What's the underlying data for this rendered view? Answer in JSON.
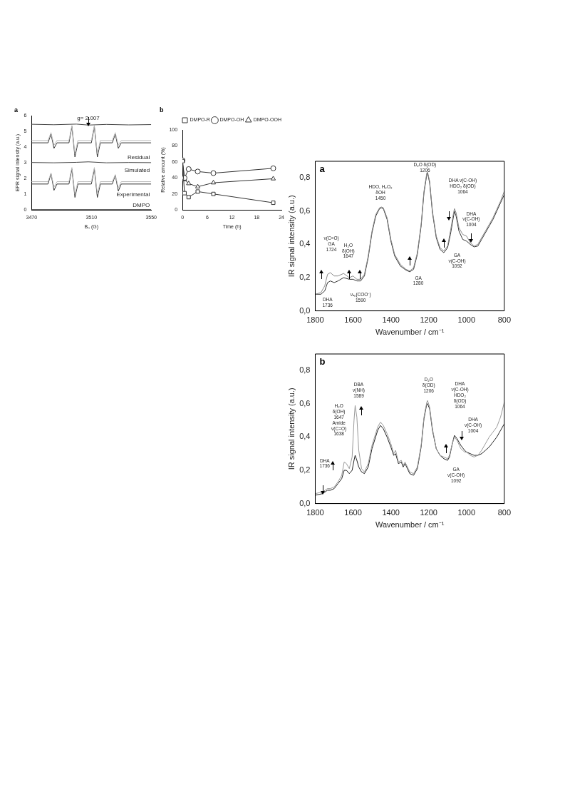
{
  "chart_data": [
    {
      "type": "line",
      "title": "a",
      "xlabel": "B₀ (G)",
      "ylabel": "EPR signal intensity (a.u.)",
      "xlim": [
        3470,
        3550
      ],
      "xticks": [
        3470,
        3510,
        3550
      ],
      "ylim": [
        0,
        6
      ],
      "yticks": [
        0,
        1,
        2,
        3,
        4,
        5,
        6
      ],
      "grid": false,
      "legend": false,
      "marker": "none",
      "x": [
        3470,
        3481,
        3483,
        3485,
        3487,
        3495,
        3497,
        3499,
        3501,
        3510,
        3512,
        3514,
        3516,
        3524,
        3526,
        3528,
        3530,
        3550
      ],
      "series": [
        {
          "color": "#444444",
          "x": [
            3470,
            3485,
            3500,
            3508,
            3520,
            3535,
            3550
          ],
          "values": [
            5.45,
            5.42,
            5.46,
            5.4,
            5.44,
            5.41,
            5.43
          ]
        },
        {
          "color": "#bbbbbb",
          "values": [
            4.42,
            4.42,
            4.92,
            4.12,
            4.42,
            4.42,
            5.37,
            3.57,
            4.42,
            4.42,
            5.37,
            3.57,
            4.42,
            4.42,
            4.92,
            4.12,
            4.42,
            4.42
          ]
        },
        {
          "color": "#333333",
          "values": [
            4.27,
            4.27,
            4.82,
            3.92,
            4.27,
            4.27,
            5.3,
            3.37,
            4.27,
            4.27,
            5.3,
            3.37,
            4.27,
            4.27,
            4.82,
            3.92,
            4.27,
            4.27
          ]
        },
        {
          "color": "#444444",
          "x": [
            3470,
            3485,
            3500,
            3508,
            3520,
            3535,
            3550
          ],
          "values": [
            3.02,
            3.0,
            3.03,
            3.06,
            3.0,
            3.02,
            3.01
          ]
        },
        {
          "color": "#bbbbbb",
          "values": [
            1.8,
            1.8,
            2.35,
            1.45,
            1.8,
            1.8,
            2.7,
            1.0,
            1.8,
            1.8,
            2.7,
            1.0,
            1.8,
            1.8,
            2.25,
            1.4,
            1.8,
            1.8
          ]
        },
        {
          "color": "#333333",
          "values": [
            1.65,
            1.65,
            2.3,
            1.25,
            1.65,
            1.65,
            2.6,
            0.8,
            1.65,
            1.65,
            2.6,
            0.8,
            1.65,
            1.65,
            2.2,
            1.2,
            1.65,
            1.65
          ]
        },
        {
          "color": "#333333",
          "x": [
            3470,
            3550
          ],
          "values": [
            0.02,
            0.02
          ]
        }
      ],
      "annotations": [
        "g= 2.007",
        "Residual",
        "Simulated",
        "Experimental",
        "DMPO"
      ]
    },
    {
      "type": "line",
      "title": "b",
      "xlabel": "Time (h)",
      "ylabel": "Relative amount (%)",
      "xlim": [
        0,
        24
      ],
      "xticks": [
        0,
        6,
        12,
        18,
        24
      ],
      "ylim": [
        0,
        100
      ],
      "yticks": [
        0,
        20,
        40,
        60,
        80,
        100
      ],
      "grid": false,
      "legend": "top right",
      "x": [
        0,
        0.5,
        1.5,
        3.7,
        7.5,
        22
      ],
      "series": [
        {
          "name": "DMPO-R",
          "color": "#333333",
          "marker": "square",
          "values": [
            61,
            21,
            16,
            23,
            20,
            9
          ]
        },
        {
          "name": "DMPO-OH",
          "color": "#333333",
          "marker": "circle",
          "values": [
            62,
            40,
            51,
            48,
            46,
            52
          ]
        },
        {
          "name": "DMPO-OOH",
          "color": "#333333",
          "marker": "triangle",
          "values": [
            61,
            38,
            33,
            29,
            34,
            39
          ]
        }
      ]
    },
    {
      "type": "line",
      "title": "a",
      "xlabel": "Wavenumber / cm⁻¹",
      "ylabel": "IR signal intensity (a.u.)",
      "xlim": [
        1800,
        800
      ],
      "xticks": [
        1800,
        1600,
        1400,
        1200,
        1000,
        800
      ],
      "ylim": [
        0,
        0.9
      ],
      "yticks": [
        {
          "value": 0,
          "label": "0,0"
        },
        {
          "value": 0.2,
          "label": "0,2"
        },
        {
          "value": 0.4,
          "label": "0,4"
        },
        {
          "value": 0.6,
          "label": "0,6"
        },
        {
          "value": 0.8,
          "label": "0,8"
        }
      ],
      "grid": false,
      "legend": false,
      "marker": "none",
      "series": [
        {
          "color": "#888888",
          "x": [
            1800,
            1770,
            1750,
            1735,
            1720,
            1700,
            1680,
            1650,
            1620,
            1600,
            1580,
            1560,
            1540,
            1520,
            1500,
            1480,
            1460,
            1450,
            1440,
            1420,
            1400,
            1380,
            1350,
            1320,
            1300,
            1280,
            1260,
            1240,
            1225,
            1210,
            1206,
            1195,
            1180,
            1160,
            1140,
            1120,
            1100,
            1085,
            1070,
            1064,
            1055,
            1040,
            1020,
            1000,
            980,
            960,
            940,
            920,
            900,
            880,
            860,
            840,
            820,
            800
          ],
          "values": [
            0.1,
            0.11,
            0.15,
            0.22,
            0.23,
            0.21,
            0.21,
            0.225,
            0.2,
            0.21,
            0.19,
            0.19,
            0.22,
            0.33,
            0.48,
            0.58,
            0.62,
            0.625,
            0.62,
            0.56,
            0.43,
            0.34,
            0.28,
            0.25,
            0.24,
            0.26,
            0.35,
            0.52,
            0.72,
            0.83,
            0.835,
            0.78,
            0.6,
            0.45,
            0.38,
            0.36,
            0.39,
            0.48,
            0.58,
            0.615,
            0.59,
            0.5,
            0.46,
            0.45,
            0.41,
            0.39,
            0.4,
            0.44,
            0.48,
            0.52,
            0.56,
            0.61,
            0.66,
            0.72
          ]
        },
        {
          "color": "#333333",
          "x": [
            1800,
            1770,
            1750,
            1735,
            1720,
            1700,
            1680,
            1650,
            1620,
            1600,
            1580,
            1560,
            1540,
            1520,
            1500,
            1480,
            1460,
            1450,
            1440,
            1420,
            1400,
            1380,
            1350,
            1320,
            1300,
            1280,
            1260,
            1240,
            1225,
            1210,
            1206,
            1195,
            1180,
            1160,
            1140,
            1120,
            1100,
            1085,
            1070,
            1064,
            1055,
            1040,
            1020,
            1000,
            980,
            960,
            940,
            920,
            900,
            880,
            860,
            840,
            820,
            800
          ],
          "values": [
            0.1,
            0.1,
            0.12,
            0.17,
            0.18,
            0.17,
            0.18,
            0.2,
            0.19,
            0.19,
            0.18,
            0.18,
            0.21,
            0.32,
            0.47,
            0.57,
            0.615,
            0.62,
            0.615,
            0.55,
            0.42,
            0.33,
            0.27,
            0.245,
            0.235,
            0.25,
            0.34,
            0.51,
            0.71,
            0.82,
            0.83,
            0.77,
            0.59,
            0.44,
            0.37,
            0.35,
            0.38,
            0.46,
            0.56,
            0.6,
            0.57,
            0.48,
            0.43,
            0.42,
            0.4,
            0.385,
            0.39,
            0.43,
            0.47,
            0.51,
            0.55,
            0.6,
            0.65,
            0.7
          ]
        }
      ],
      "annotations": [
        "ν(C=O)\nGA\n1724",
        "DHA\n1736",
        "H₂O\nδ(OH)\n1647",
        "νₐₛ(COO⁻)\n1590",
        "HDO, H₂O₂\nδOH\n1450",
        "GA\n1280",
        "D₂O δ(OD)\n1206",
        "DHA ν(C-OH)\nHDO₂ δ(OD)\n1064",
        "DHA\nν(C-OH)\n1004",
        "GA\nν(C-OH)\n1092"
      ]
    },
    {
      "type": "line",
      "title": "b",
      "xlabel": "Wavenumber / cm⁻¹",
      "ylabel": "IR signal intensity (a.u.)",
      "xlim": [
        1800,
        800
      ],
      "xticks": [
        1800,
        1600,
        1400,
        1200,
        1000,
        800
      ],
      "ylim": [
        0,
        0.9
      ],
      "yticks": [
        {
          "value": 0,
          "label": "0,0"
        },
        {
          "value": 0.2,
          "label": "0,2"
        },
        {
          "value": 0.4,
          "label": "0,4"
        },
        {
          "value": 0.6,
          "label": "0,6"
        },
        {
          "value": 0.8,
          "label": "0,8"
        }
      ],
      "grid": false,
      "legend": false,
      "marker": "none",
      "series": [
        {
          "color": "#999999",
          "x": [
            1800,
            1760,
            1736,
            1720,
            1700,
            1680,
            1660,
            1647,
            1635,
            1620,
            1605,
            1595,
            1589,
            1580,
            1570,
            1555,
            1540,
            1520,
            1500,
            1470,
            1455,
            1440,
            1420,
            1400,
            1385,
            1375,
            1360,
            1345,
            1335,
            1325,
            1300,
            1280,
            1260,
            1240,
            1225,
            1210,
            1206,
            1195,
            1180,
            1160,
            1140,
            1120,
            1100,
            1090,
            1075,
            1064,
            1050,
            1030,
            1010,
            1000,
            980,
            960,
            940,
            920,
            900,
            880,
            860,
            840,
            820,
            800
          ],
          "values": [
            0.06,
            0.07,
            0.09,
            0.09,
            0.1,
            0.13,
            0.17,
            0.25,
            0.24,
            0.21,
            0.28,
            0.5,
            0.59,
            0.52,
            0.32,
            0.21,
            0.19,
            0.24,
            0.35,
            0.46,
            0.49,
            0.47,
            0.42,
            0.36,
            0.3,
            0.32,
            0.25,
            0.26,
            0.23,
            0.25,
            0.19,
            0.18,
            0.22,
            0.35,
            0.52,
            0.61,
            0.62,
            0.58,
            0.45,
            0.33,
            0.29,
            0.28,
            0.27,
            0.29,
            0.36,
            0.4,
            0.38,
            0.33,
            0.31,
            0.31,
            0.29,
            0.28,
            0.29,
            0.32,
            0.36,
            0.4,
            0.43,
            0.46,
            0.52,
            0.61
          ]
        },
        {
          "color": "#222222",
          "x": [
            1800,
            1760,
            1736,
            1720,
            1700,
            1680,
            1660,
            1647,
            1635,
            1620,
            1605,
            1595,
            1589,
            1580,
            1570,
            1555,
            1540,
            1520,
            1500,
            1470,
            1455,
            1440,
            1420,
            1400,
            1385,
            1375,
            1360,
            1345,
            1335,
            1325,
            1300,
            1280,
            1260,
            1240,
            1225,
            1210,
            1206,
            1195,
            1180,
            1160,
            1140,
            1120,
            1100,
            1090,
            1075,
            1064,
            1050,
            1030,
            1010,
            1000,
            980,
            960,
            940,
            920,
            900,
            880,
            860,
            840,
            820,
            800
          ],
          "values": [
            0.05,
            0.06,
            0.08,
            0.08,
            0.09,
            0.12,
            0.15,
            0.2,
            0.2,
            0.18,
            0.2,
            0.26,
            0.29,
            0.26,
            0.22,
            0.19,
            0.18,
            0.22,
            0.33,
            0.44,
            0.47,
            0.45,
            0.4,
            0.34,
            0.29,
            0.3,
            0.24,
            0.25,
            0.22,
            0.24,
            0.18,
            0.17,
            0.21,
            0.34,
            0.51,
            0.6,
            0.6,
            0.57,
            0.44,
            0.33,
            0.29,
            0.27,
            0.26,
            0.28,
            0.36,
            0.41,
            0.39,
            0.35,
            0.32,
            0.31,
            0.3,
            0.29,
            0.29,
            0.3,
            0.32,
            0.34,
            0.37,
            0.4,
            0.44,
            0.48
          ]
        }
      ],
      "annotations": [
        "DHA\n1736",
        "H₂O\nδ(OH)\n1647\nAmide\nν(C=O)\n1638",
        "DBA\nν(NH)\n1589",
        "D₂O\nδ(OD)\n1206",
        "DHA\nν(C-OH)\nHDO₂\nδ(OD)\n1064",
        "DHA\nν(C-OH)\n1004",
        "GA\nν(C-OH)\n1092"
      ]
    }
  ]
}
